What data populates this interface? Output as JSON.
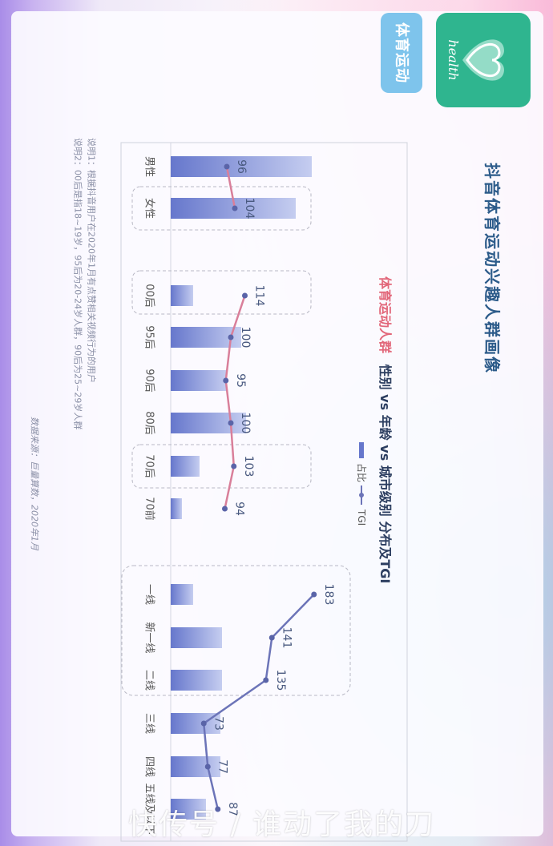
{
  "title": "抖音体育运动兴趣人群画像",
  "badge": {
    "text": "体育运动"
  },
  "logo": {
    "text": "health",
    "color": "#2fb58f",
    "icon": "heart-icon"
  },
  "chart_title": {
    "highlight": "体育运动人群",
    "rest": "性别 vs 年龄 vs 城市级别 分布及TGI"
  },
  "legend": {
    "bar_label": "占比",
    "line_label": "TGI"
  },
  "notes": [
    "说明1：根据抖音用户在2020年1月有点赞相关视频行为的用户",
    "说明2：00后是指18~19岁，95后为20-24岁人群，90后为25~29岁人群"
  ],
  "source": "数据来源：巨量算数，2020年1月",
  "watermark": "快传号 / 谁动了我的刀",
  "colors": {
    "bar": "#6677cc",
    "bar_light": "#c5cdf0",
    "line_pink": "#d97f9a",
    "line_blue": "#6c74b8",
    "title": "#2c5b8a",
    "highlight": "#e2677a"
  },
  "chart_data": {
    "type": "bar",
    "orientation": "rotated-90",
    "groups": [
      {
        "name": "gender",
        "categories": [
          "男性",
          "女性"
        ],
        "share_relative": [
          0.88,
          0.78
        ],
        "tgi": [
          96,
          104
        ],
        "line_color": "pink"
      },
      {
        "name": "age",
        "categories": [
          "00后",
          "95后",
          "90后",
          "80后",
          "70后",
          "70前"
        ],
        "share_relative": [
          0.14,
          0.44,
          0.35,
          0.47,
          0.18,
          0.07
        ],
        "tgi": [
          114,
          100,
          95,
          100,
          103,
          94
        ],
        "line_color": "pink"
      },
      {
        "name": "city",
        "categories": [
          "一线",
          "新一线",
          "二线",
          "三线",
          "四线",
          "五线及以下"
        ],
        "share_relative": [
          0.14,
          0.32,
          0.32,
          0.31,
          0.31,
          0.22
        ],
        "tgi": [
          183,
          141,
          135,
          73,
          77,
          87
        ],
        "line_color": "blue"
      }
    ],
    "series": [
      {
        "name": "占比"
      },
      {
        "name": "TGI"
      }
    ]
  }
}
